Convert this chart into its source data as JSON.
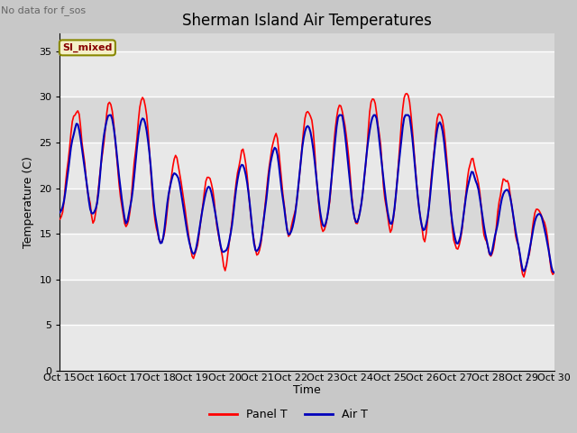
{
  "title": "Sherman Island Air Temperatures",
  "xlabel": "Time",
  "ylabel": "Temperature (C)",
  "no_data_label": "No data for f_sos",
  "legend_label": "SI_mixed",
  "ylim": [
    0,
    37
  ],
  "xlim": [
    0,
    360
  ],
  "yticks": [
    0,
    5,
    10,
    15,
    20,
    25,
    30,
    35
  ],
  "xtick_labels": [
    "Oct 15",
    "Oct 16",
    "Oct 17",
    "Oct 18",
    "Oct 19",
    "Oct 20",
    "Oct 21",
    "Oct 22",
    "Oct 23",
    "Oct 24",
    "Oct 25",
    "Oct 26",
    "Oct 27",
    "Oct 28",
    "Oct 29",
    "Oct 30"
  ],
  "panel_color": "#ff0000",
  "air_color": "#0000bb",
  "fig_bg_color": "#c8c8c8",
  "plot_bg_color": "#d8d8d8",
  "band_color": "#e8e8e8",
  "legend1_label": "Panel T",
  "legend2_label": "Air T",
  "title_fontsize": 12,
  "label_fontsize": 9,
  "tick_fontsize": 8,
  "nodata_fontsize": 8
}
